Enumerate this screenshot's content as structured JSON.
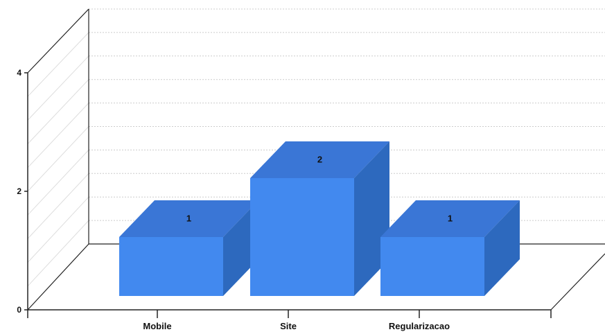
{
  "chart_data": {
    "type": "bar",
    "style": "3d",
    "categories": [
      "Mobile",
      "Site",
      "Regularizacao"
    ],
    "values": [
      1,
      2,
      1
    ],
    "data_labels": [
      "1",
      "2",
      "1"
    ],
    "ylim": [
      0,
      4
    ],
    "y_ticks": [
      "0",
      "2",
      "4"
    ],
    "grid": true,
    "colors": {
      "front": "#4289ef",
      "top": "#3a76d6",
      "side": "#2d69be",
      "axis": "#222222",
      "grid": "#cccccc"
    }
  }
}
